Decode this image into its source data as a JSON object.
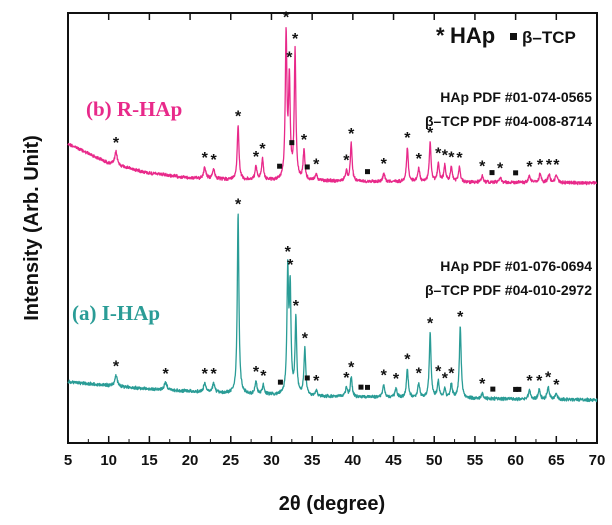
{
  "chart_data": {
    "type": "line",
    "title": "",
    "xlabel": "2θ (degree)",
    "ylabel": "Intensity (Arb. Unit)",
    "xlim": [
      5,
      70
    ],
    "xticks": [
      5,
      10,
      15,
      20,
      25,
      30,
      35,
      40,
      45,
      50,
      55,
      60,
      65,
      70
    ],
    "grid": false,
    "legend": {
      "position": "top-right",
      "hap_symbol": "*",
      "hap_label": "HAp",
      "tcp_label": "β–TCP"
    },
    "series": [
      {
        "name": "(b) R-HAp",
        "color": "#e8298a",
        "references": [
          "HAp PDF #01-074-0565",
          "β–TCP PDF #04-008-8714"
        ],
        "hap_peaks": [
          10.9,
          21.8,
          22.9,
          25.9,
          28.1,
          28.9,
          31.8,
          32.2,
          32.9,
          34.0,
          35.5,
          39.2,
          39.8,
          43.8,
          46.7,
          48.1,
          49.5,
          50.5,
          51.3,
          52.1,
          53.1,
          55.9,
          58.1,
          61.7,
          63.0,
          64.1,
          65.0
        ],
        "tcp_peaks": [
          31.0,
          32.5,
          34.4,
          41.8,
          57.1,
          60.0
        ],
        "profile": [
          [
            5,
            24
          ],
          [
            10,
            12
          ],
          [
            15,
            6
          ],
          [
            20,
            3
          ],
          [
            25,
            2
          ],
          [
            30,
            1.5
          ],
          [
            40,
            1
          ],
          [
            50,
            0.5
          ],
          [
            60,
            0.3
          ],
          [
            70,
            0
          ]
        ],
        "peaks": [
          {
            "x": 10.9,
            "h": 8,
            "w": 0.18
          },
          {
            "x": 21.8,
            "h": 7,
            "w": 0.16
          },
          {
            "x": 22.9,
            "h": 6,
            "w": 0.16
          },
          {
            "x": 25.9,
            "h": 33,
            "w": 0.13
          },
          {
            "x": 28.1,
            "h": 8,
            "w": 0.14
          },
          {
            "x": 28.9,
            "h": 13,
            "w": 0.14
          },
          {
            "x": 31.8,
            "h": 88,
            "w": 0.12
          },
          {
            "x": 32.2,
            "h": 60,
            "w": 0.12
          },
          {
            "x": 32.9,
            "h": 78,
            "w": 0.12
          },
          {
            "x": 34.0,
            "h": 18,
            "w": 0.13
          },
          {
            "x": 35.5,
            "h": 4,
            "w": 0.15
          },
          {
            "x": 39.2,
            "h": 6,
            "w": 0.14
          },
          {
            "x": 39.8,
            "h": 23,
            "w": 0.13
          },
          {
            "x": 43.8,
            "h": 5,
            "w": 0.15
          },
          {
            "x": 46.7,
            "h": 21,
            "w": 0.13
          },
          {
            "x": 48.1,
            "h": 8,
            "w": 0.14
          },
          {
            "x": 49.5,
            "h": 24,
            "w": 0.13
          },
          {
            "x": 50.5,
            "h": 11,
            "w": 0.14
          },
          {
            "x": 51.3,
            "h": 10,
            "w": 0.14
          },
          {
            "x": 52.1,
            "h": 9,
            "w": 0.14
          },
          {
            "x": 53.1,
            "h": 9,
            "w": 0.14
          },
          {
            "x": 55.9,
            "h": 4,
            "w": 0.15
          },
          {
            "x": 58.1,
            "h": 3,
            "w": 0.15
          },
          {
            "x": 61.7,
            "h": 4,
            "w": 0.15
          },
          {
            "x": 63.0,
            "h": 5,
            "w": 0.15
          },
          {
            "x": 64.1,
            "h": 5,
            "w": 0.15
          },
          {
            "x": 65.0,
            "h": 5,
            "w": 0.15
          }
        ]
      },
      {
        "name": "(a) I-HAp",
        "color": "#2a9c96",
        "references": [
          "HAp PDF #01-076-0694",
          "β–TCP PDF #04-010-2972"
        ],
        "hap_peaks": [
          10.9,
          17.0,
          21.8,
          22.9,
          25.9,
          28.1,
          29.0,
          32.0,
          32.3,
          33.0,
          34.1,
          35.5,
          39.2,
          39.8,
          43.8,
          45.3,
          46.7,
          48.1,
          49.5,
          50.5,
          51.3,
          52.1,
          53.2,
          55.9,
          61.7,
          62.9,
          64.0,
          65.0
        ],
        "tcp_peaks": [
          31.1,
          34.4,
          41.0,
          41.8,
          57.2,
          60.0,
          60.4
        ],
        "profile": [
          [
            5,
            10
          ],
          [
            15,
            6
          ],
          [
            25,
            3.5
          ],
          [
            35,
            2
          ],
          [
            50,
            1
          ],
          [
            60,
            0.5
          ],
          [
            70,
            0
          ]
        ],
        "peaks": [
          {
            "x": 10.9,
            "h": 6,
            "w": 0.18
          },
          {
            "x": 17.0,
            "h": 4,
            "w": 0.2
          },
          {
            "x": 21.8,
            "h": 5,
            "w": 0.16
          },
          {
            "x": 22.9,
            "h": 5,
            "w": 0.16
          },
          {
            "x": 25.9,
            "h": 100,
            "w": 0.12
          },
          {
            "x": 28.1,
            "h": 7,
            "w": 0.14
          },
          {
            "x": 29.0,
            "h": 5,
            "w": 0.14
          },
          {
            "x": 32.0,
            "h": 66,
            "w": 0.12
          },
          {
            "x": 32.3,
            "h": 57,
            "w": 0.12
          },
          {
            "x": 33.0,
            "h": 42,
            "w": 0.12
          },
          {
            "x": 34.1,
            "h": 26,
            "w": 0.13
          },
          {
            "x": 35.5,
            "h": 3,
            "w": 0.15
          },
          {
            "x": 39.2,
            "h": 5,
            "w": 0.14
          },
          {
            "x": 39.8,
            "h": 11,
            "w": 0.13
          },
          {
            "x": 43.8,
            "h": 7,
            "w": 0.15
          },
          {
            "x": 45.3,
            "h": 5,
            "w": 0.15
          },
          {
            "x": 46.7,
            "h": 16,
            "w": 0.13
          },
          {
            "x": 48.1,
            "h": 8,
            "w": 0.14
          },
          {
            "x": 49.5,
            "h": 36,
            "w": 0.13
          },
          {
            "x": 50.5,
            "h": 9,
            "w": 0.14
          },
          {
            "x": 51.3,
            "h": 5,
            "w": 0.14
          },
          {
            "x": 52.1,
            "h": 8,
            "w": 0.14
          },
          {
            "x": 53.2,
            "h": 40,
            "w": 0.13
          },
          {
            "x": 55.9,
            "h": 3,
            "w": 0.15
          },
          {
            "x": 61.7,
            "h": 5,
            "w": 0.15
          },
          {
            "x": 62.9,
            "h": 5,
            "w": 0.15
          },
          {
            "x": 64.0,
            "h": 7,
            "w": 0.15
          },
          {
            "x": 65.0,
            "h": 3,
            "w": 0.15
          }
        ]
      }
    ]
  }
}
